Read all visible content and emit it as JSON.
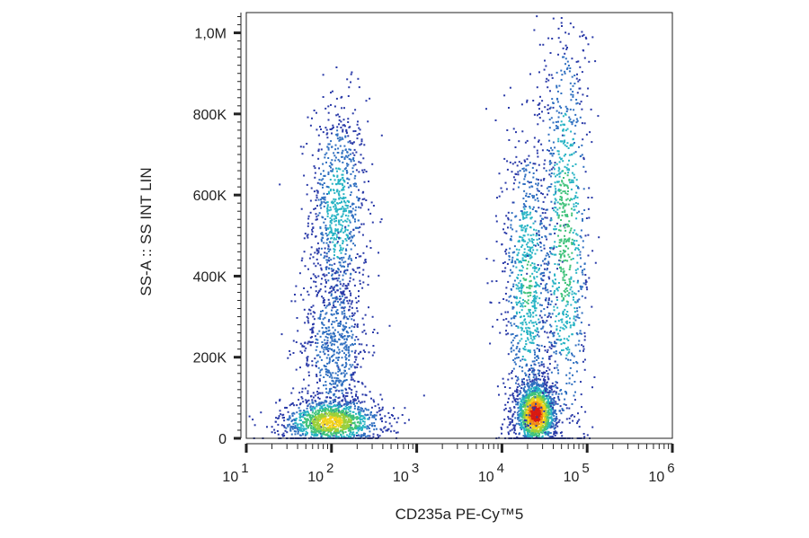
{
  "chart_data": {
    "type": "scatter",
    "title": "",
    "xlabel": "CD235a PE-Cy™5",
    "ylabel": "SS-A :: SS INT LIN",
    "x_scale": "log",
    "xlim": [
      10,
      1000000
    ],
    "ylim": [
      0,
      1050000
    ],
    "x_ticks": [
      {
        "value": 10,
        "base": "10",
        "exp": "1"
      },
      {
        "value": 100,
        "base": "10",
        "exp": "2"
      },
      {
        "value": 1000,
        "base": "10",
        "exp": "3"
      },
      {
        "value": 10000,
        "base": "10",
        "exp": "4"
      },
      {
        "value": 100000,
        "base": "10",
        "exp": "5"
      },
      {
        "value": 1000000,
        "base": "10",
        "exp": "6"
      }
    ],
    "y_ticks": [
      {
        "value": 0,
        "label": "0"
      },
      {
        "value": 200000,
        "label": "200K"
      },
      {
        "value": 400000,
        "label": "400K"
      },
      {
        "value": 600000,
        "label": "600K"
      },
      {
        "value": 800000,
        "label": "800K"
      },
      {
        "value": 1000000,
        "label": "1,0M"
      }
    ],
    "grid": false,
    "density_colormap": [
      "#2a3aa8",
      "#2f6fc0",
      "#27b3c4",
      "#3fc27a",
      "#9ad03a",
      "#f2d21b",
      "#f08a12",
      "#d81a12"
    ],
    "populations": [
      {
        "x_center": 120,
        "y_center": 560000,
        "x_spread_decades": 0.17,
        "y_spread": 140000,
        "density": 0.35
      },
      {
        "x_center": 110,
        "y_center": 230000,
        "x_spread_decades": 0.2,
        "y_spread": 110000,
        "density": 0.25
      },
      {
        "x_center": 100,
        "y_center": 40000,
        "x_spread_decades": 0.3,
        "y_spread": 30000,
        "density": 0.7
      },
      {
        "x_center": 25000,
        "y_center": 60000,
        "x_spread_decades": 0.12,
        "y_spread": 40000,
        "density": 1.0
      },
      {
        "x_center": 20000,
        "y_center": 380000,
        "x_spread_decades": 0.15,
        "y_spread": 200000,
        "density": 0.4
      },
      {
        "x_center": 55000,
        "y_center": 500000,
        "x_spread_decades": 0.15,
        "y_spread": 280000,
        "density": 0.45
      }
    ]
  }
}
